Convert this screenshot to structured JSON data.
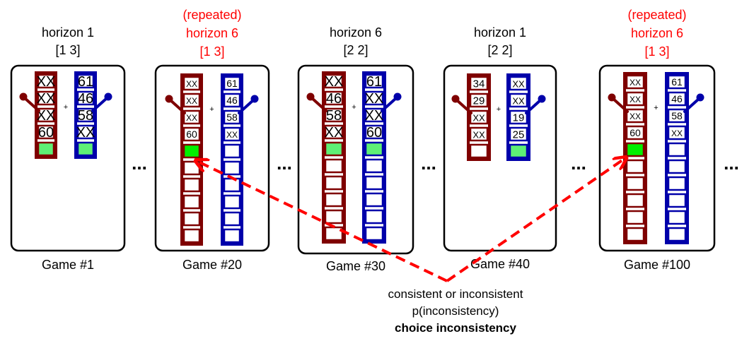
{
  "colors": {
    "left_bandit": "#7f0000",
    "right_bandit": "#0000aa",
    "green_fill": "#5ef075",
    "green_fill_bright": "#00f000",
    "highlight_red": "#ff0000",
    "text": "#000000"
  },
  "ellipsis": "...",
  "plus": "+",
  "games": [
    {
      "header": [
        "horizon 1",
        "[1 3]"
      ],
      "header_red": false,
      "label": "Game #1",
      "left": [
        "XX",
        "XX",
        "XX",
        "60"
      ],
      "right": [
        "61",
        "46",
        "58",
        "XX"
      ],
      "length": 5,
      "green": "both",
      "big_text": true
    },
    {
      "header": [
        "(repeated)",
        "horizon 6",
        "[1 3]"
      ],
      "header_red": true,
      "label": "Game #20",
      "left": [
        "XX",
        "XX",
        "XX",
        "60"
      ],
      "right": [
        "61",
        "46",
        "58",
        "XX"
      ],
      "length": 10,
      "green": "left",
      "big_text": false
    },
    {
      "header": [
        "horizon 6",
        "[2 2]"
      ],
      "header_red": false,
      "label": "Game #30",
      "left": [
        "XX",
        "46",
        "58",
        "XX"
      ],
      "right": [
        "61",
        "XX",
        "XX",
        "60"
      ],
      "length": 10,
      "green": "both",
      "big_text": true
    },
    {
      "header": [
        "horizon 1",
        "[2 2]"
      ],
      "header_red": false,
      "label": "Game #40",
      "left": [
        "34",
        "29",
        "XX",
        "XX"
      ],
      "right": [
        "XX",
        "XX",
        "19",
        "25"
      ],
      "length": 5,
      "green": "right",
      "big_text": false
    },
    {
      "header": [
        "(repeated)",
        "horizon 6",
        "[1 3]"
      ],
      "header_red": true,
      "label": "Game #100",
      "left": [
        "XX",
        "XX",
        "XX",
        "60"
      ],
      "right": [
        "61",
        "46",
        "58",
        "XX"
      ],
      "length": 10,
      "green": "left",
      "big_text": false
    }
  ],
  "caption": {
    "line1": "consistent or inconsistent",
    "line2": "p(inconsistency)",
    "line3": "choice inconsistency"
  }
}
